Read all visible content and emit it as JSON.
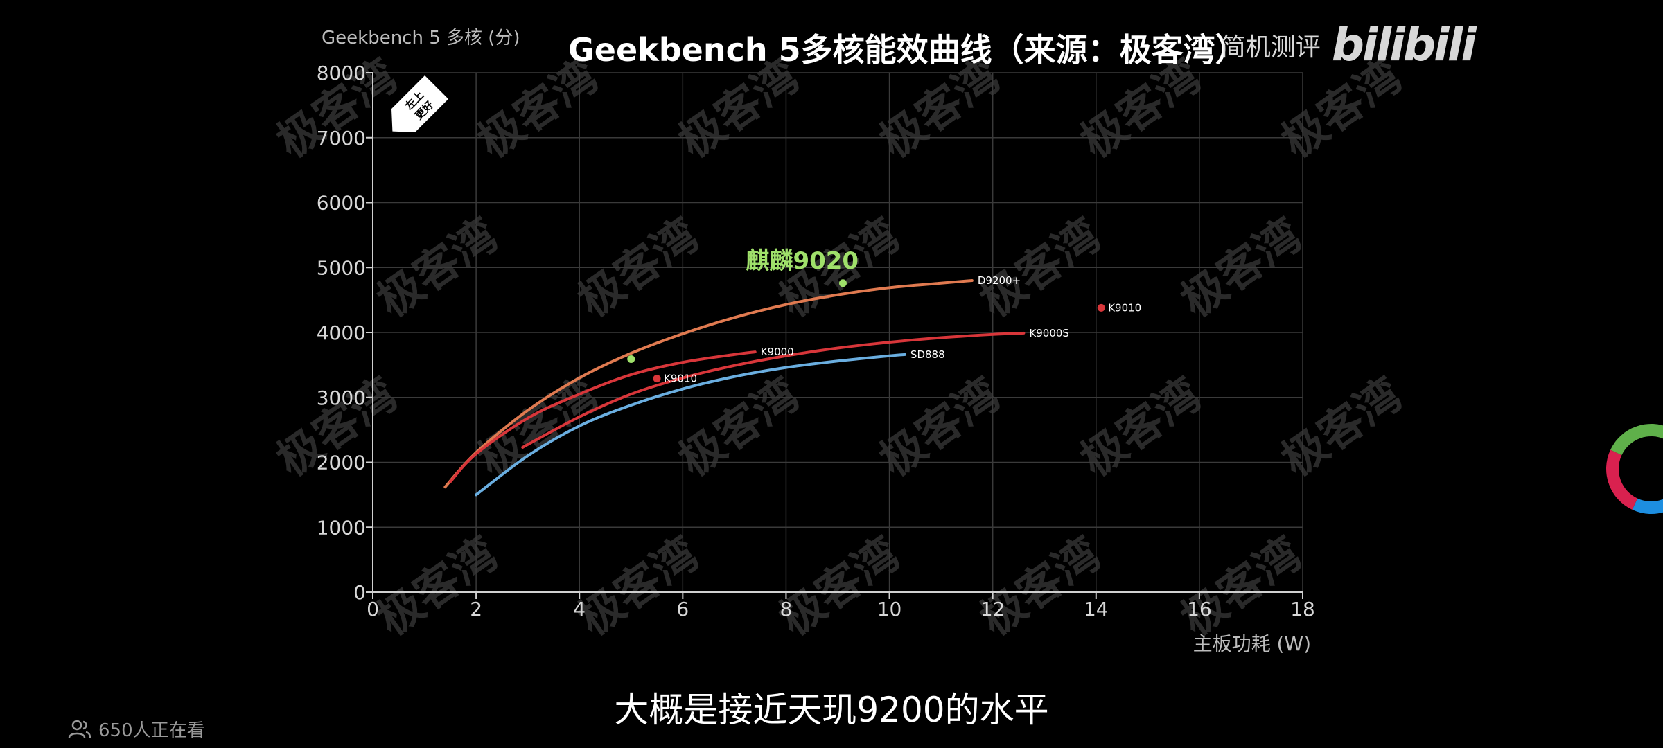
{
  "header": {
    "title": "Geekbench 5多核能效曲线（来源：极客湾）",
    "channel_name": "简机测评",
    "platform_logo": "bilibili"
  },
  "subtitle": "大概是接近天玑9200的水平",
  "viewers": "650人正在看",
  "watermark": "极客湾",
  "badge": {
    "line1": "左上",
    "line2": "更好"
  },
  "chart_data": {
    "type": "line",
    "title": "Geekbench 5多核能效曲线（来源：极客湾）",
    "xlabel": "主板功耗 (W)",
    "ylabel": "Geekbench 5 多核 (分)",
    "xlim": [
      0,
      18
    ],
    "ylim": [
      0,
      8000
    ],
    "xticks": [
      0,
      2,
      4,
      6,
      8,
      10,
      12,
      14,
      16,
      18
    ],
    "yticks": [
      0,
      1000,
      2000,
      3000,
      4000,
      5000,
      6000,
      7000,
      8000
    ],
    "grid": true,
    "series": [
      {
        "name": "D9200+",
        "color": "#e07a50",
        "points": [
          [
            1.4,
            1620
          ],
          [
            2.0,
            2150
          ],
          [
            3.0,
            2800
          ],
          [
            4.0,
            3300
          ],
          [
            5.0,
            3680
          ],
          [
            6.0,
            3980
          ],
          [
            7.0,
            4230
          ],
          [
            8.0,
            4430
          ],
          [
            9.0,
            4580
          ],
          [
            10.0,
            4690
          ],
          [
            11.0,
            4760
          ],
          [
            11.6,
            4800
          ]
        ]
      },
      {
        "name": "K9000",
        "color": "#d8363a",
        "points": [
          [
            1.5,
            1700
          ],
          [
            2.0,
            2130
          ],
          [
            3.0,
            2680
          ],
          [
            4.0,
            3050
          ],
          [
            5.0,
            3350
          ],
          [
            6.0,
            3540
          ],
          [
            7.0,
            3660
          ],
          [
            7.4,
            3700
          ]
        ]
      },
      {
        "name": "K9000S",
        "color": "#d8363a",
        "points": [
          [
            2.9,
            2230
          ],
          [
            4.0,
            2700
          ],
          [
            5.0,
            3050
          ],
          [
            6.0,
            3300
          ],
          [
            7.0,
            3490
          ],
          [
            8.0,
            3640
          ],
          [
            9.0,
            3760
          ],
          [
            10.0,
            3850
          ],
          [
            11.0,
            3920
          ],
          [
            12.0,
            3970
          ],
          [
            12.6,
            3990
          ]
        ]
      },
      {
        "name": "SD888",
        "color": "#6aaee0",
        "points": [
          [
            2.0,
            1500
          ],
          [
            3.0,
            2100
          ],
          [
            4.0,
            2560
          ],
          [
            5.0,
            2880
          ],
          [
            6.0,
            3130
          ],
          [
            7.0,
            3320
          ],
          [
            8.0,
            3460
          ],
          [
            9.0,
            3560
          ],
          [
            10.0,
            3640
          ],
          [
            10.3,
            3660
          ]
        ]
      }
    ],
    "markers": [
      {
        "label": "K9010",
        "x": 5.5,
        "y": 3290,
        "color": "#d8363a"
      },
      {
        "label": "K9010",
        "x": 14.1,
        "y": 4380,
        "color": "#d8363a"
      },
      {
        "label": "麒麟9020",
        "x": 9.1,
        "y": 4760,
        "color": "#9fe06a"
      },
      {
        "label": "",
        "x": 5.0,
        "y": 3590,
        "color": "#9fe06a"
      }
    ]
  }
}
